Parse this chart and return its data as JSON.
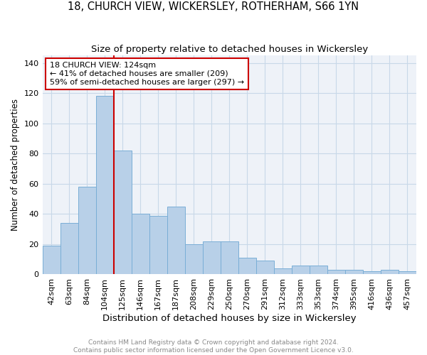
{
  "title": "18, CHURCH VIEW, WICKERSLEY, ROTHERHAM, S66 1YN",
  "subtitle": "Size of property relative to detached houses in Wickersley",
  "xlabel": "Distribution of detached houses by size in Wickersley",
  "ylabel": "Number of detached properties",
  "categories": [
    "42sqm",
    "63sqm",
    "84sqm",
    "104sqm",
    "125sqm",
    "146sqm",
    "167sqm",
    "187sqm",
    "208sqm",
    "229sqm",
    "250sqm",
    "270sqm",
    "291sqm",
    "312sqm",
    "333sqm",
    "353sqm",
    "374sqm",
    "395sqm",
    "416sqm",
    "436sqm",
    "457sqm"
  ],
  "values": [
    19,
    34,
    58,
    118,
    82,
    40,
    39,
    45,
    20,
    22,
    22,
    11,
    9,
    4,
    6,
    6,
    3,
    3,
    2,
    3,
    2
  ],
  "bar_color": "#b8d0e8",
  "bar_edge_color": "#7aaed6",
  "highlight_line_index": 4,
  "highlight_line_color": "#cc0000",
  "annotation_text": "18 CHURCH VIEW: 124sqm\n← 41% of detached houses are smaller (209)\n59% of semi-detached houses are larger (297) →",
  "annotation_box_color": "#cc0000",
  "ylim": [
    0,
    145
  ],
  "yticks": [
    0,
    20,
    40,
    60,
    80,
    100,
    120,
    140
  ],
  "grid_color": "#c8d8e8",
  "background_color": "#eef2f8",
  "footer_line1": "Contains HM Land Registry data © Crown copyright and database right 2024.",
  "footer_line2": "Contains public sector information licensed under the Open Government Licence v3.0.",
  "title_fontsize": 10.5,
  "subtitle_fontsize": 9.5,
  "xlabel_fontsize": 9.5,
  "ylabel_fontsize": 8.5,
  "tick_fontsize": 8,
  "footer_fontsize": 6.5
}
